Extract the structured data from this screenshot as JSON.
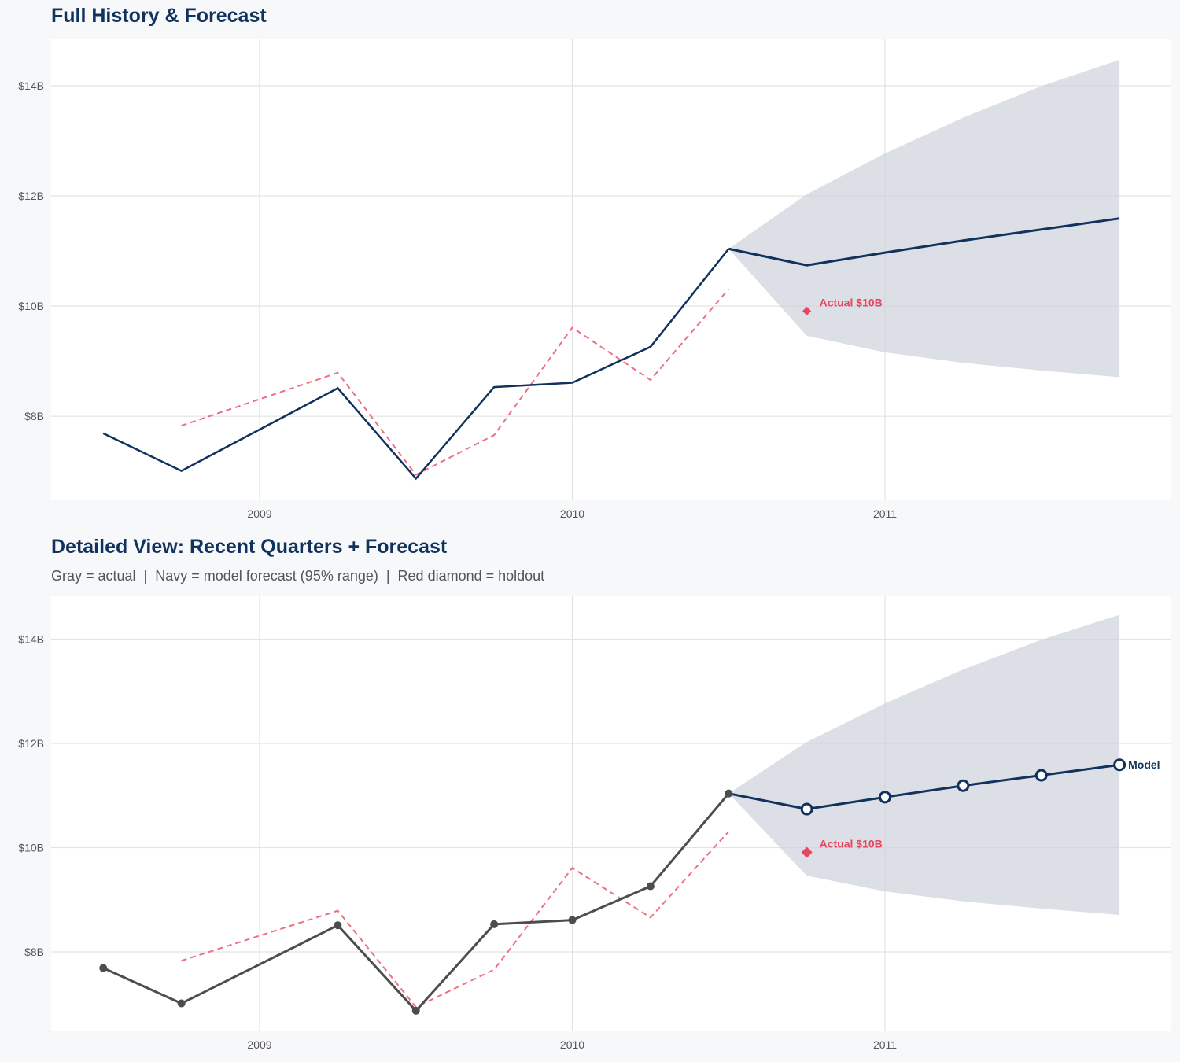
{
  "colors": {
    "navy": "#12325e",
    "gray": "#4d4d4d",
    "red": "#e8435f",
    "dashed": "#ec7083",
    "band": "#dbe0e6",
    "grid": "#e3e3e3",
    "panel": "#ffffff"
  },
  "chart_data": [
    {
      "type": "line",
      "title": "Full History & Forecast",
      "subtitle": "",
      "ylim": [
        6.49,
        14.84
      ],
      "xlim": [
        2008.33,
        2011.92
      ],
      "x_ticks": [
        {
          "value": 2009,
          "label": "2009"
        },
        {
          "value": 2010,
          "label": "2010"
        },
        {
          "value": 2011,
          "label": "2011"
        }
      ],
      "y_ticks": [
        {
          "value": 8,
          "label": "$8B"
        },
        {
          "value": 10,
          "label": "$10B"
        },
        {
          "value": 12,
          "label": "$12B"
        },
        {
          "value": 14,
          "label": "$14B"
        }
      ],
      "grid": true,
      "markers": false,
      "actual": {
        "x": [
          2008.5,
          2008.75,
          2009.25,
          2009.5,
          2009.75,
          2010.0,
          2010.25,
          2010.5
        ],
        "y": [
          7.69,
          7.01,
          8.51,
          6.87,
          8.53,
          8.61,
          9.26,
          11.04
        ]
      },
      "fitted": {
        "x": [
          2008.75,
          2009.25,
          2009.5,
          2009.75,
          2010.0,
          2010.25,
          2010.5
        ],
        "y": [
          7.83,
          8.79,
          6.94,
          7.66,
          9.61,
          8.66,
          10.31
        ]
      },
      "forecast": {
        "x": [
          2010.5,
          2010.75,
          2011.0,
          2011.25,
          2011.5,
          2011.75
        ],
        "y": [
          11.04,
          10.74,
          10.97,
          11.19,
          11.39,
          11.59
        ],
        "upper": [
          11.04,
          12.03,
          12.77,
          13.42,
          13.99,
          14.47
        ],
        "lower": [
          11.04,
          9.46,
          9.16,
          8.97,
          8.83,
          8.71
        ]
      },
      "holdout": {
        "x": 2010.75,
        "y": 9.91,
        "label": "Actual $10B"
      }
    },
    {
      "type": "line",
      "title": "Detailed View: Recent Quarters + Forecast",
      "subtitle": "Gray = actual  |  Navy = model forecast (95% range)  |  Red diamond = holdout",
      "ylim": [
        6.49,
        14.84
      ],
      "xlim": [
        2008.33,
        2011.92
      ],
      "x_ticks": [
        {
          "value": 2009,
          "label": "2009"
        },
        {
          "value": 2010,
          "label": "2010"
        },
        {
          "value": 2011,
          "label": "2011"
        }
      ],
      "y_ticks": [
        {
          "value": 8,
          "label": "$8B"
        },
        {
          "value": 10,
          "label": "$10B"
        },
        {
          "value": 12,
          "label": "$12B"
        },
        {
          "value": 14,
          "label": "$14B"
        }
      ],
      "grid": true,
      "markers": true,
      "actual": {
        "x": [
          2008.5,
          2008.75,
          2009.25,
          2009.5,
          2009.75,
          2010.0,
          2010.25,
          2010.5
        ],
        "y": [
          7.69,
          7.01,
          8.51,
          6.87,
          8.53,
          8.61,
          9.26,
          11.04
        ]
      },
      "fitted": {
        "x": [
          2008.75,
          2009.25,
          2009.5,
          2009.75,
          2010.0,
          2010.25,
          2010.5
        ],
        "y": [
          7.83,
          8.79,
          6.94,
          7.66,
          9.61,
          8.66,
          10.31
        ]
      },
      "forecast": {
        "x": [
          2010.5,
          2010.75,
          2011.0,
          2011.25,
          2011.5,
          2011.75
        ],
        "y": [
          11.04,
          10.74,
          10.97,
          11.19,
          11.39,
          11.59
        ],
        "upper": [
          11.04,
          12.03,
          12.77,
          13.42,
          13.99,
          14.47
        ],
        "lower": [
          11.04,
          9.46,
          9.16,
          8.97,
          8.83,
          8.71
        ],
        "label": "Model"
      },
      "holdout": {
        "x": 2010.75,
        "y": 9.91,
        "label": "Actual $10B"
      }
    }
  ]
}
